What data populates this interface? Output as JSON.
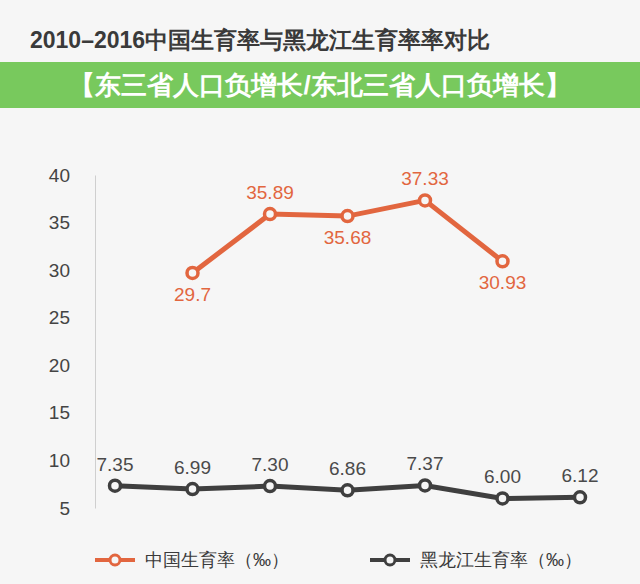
{
  "chart_data": {
    "type": "line",
    "title": "2010–2016中国生育率与黑龙江生育率率对比",
    "annotations": [
      "【东三省人口负增长/东北三省人口负增长】"
    ],
    "categories": [
      null,
      null,
      null,
      null,
      null,
      null,
      null
    ],
    "series": [
      {
        "name": "中国生育率（‰）",
        "color": "#e2663f",
        "marker": "circle",
        "values": [
          null,
          29.7,
          35.89,
          35.68,
          37.33,
          30.93,
          null
        ],
        "value_labels": [
          null,
          "29.7",
          "35.89",
          "35.68",
          "37.33",
          "30.93",
          null
        ]
      },
      {
        "name": "黑龙江生育率（‰）",
        "color": "#3f3f3f",
        "marker": "circle",
        "values": [
          7.35,
          6.99,
          7.3,
          6.86,
          7.37,
          6.0,
          6.12
        ],
        "value_labels": [
          "7.35",
          "6.99",
          "7.30",
          "6.86",
          "7.37",
          "6.00",
          "6.12"
        ]
      }
    ],
    "ylim": [
      5,
      40
    ],
    "yticks": [
      5,
      10,
      15,
      20,
      25,
      30,
      35,
      40
    ],
    "grid": false,
    "data_labels": true,
    "tick_labels": "y",
    "legend": "bottom"
  }
}
